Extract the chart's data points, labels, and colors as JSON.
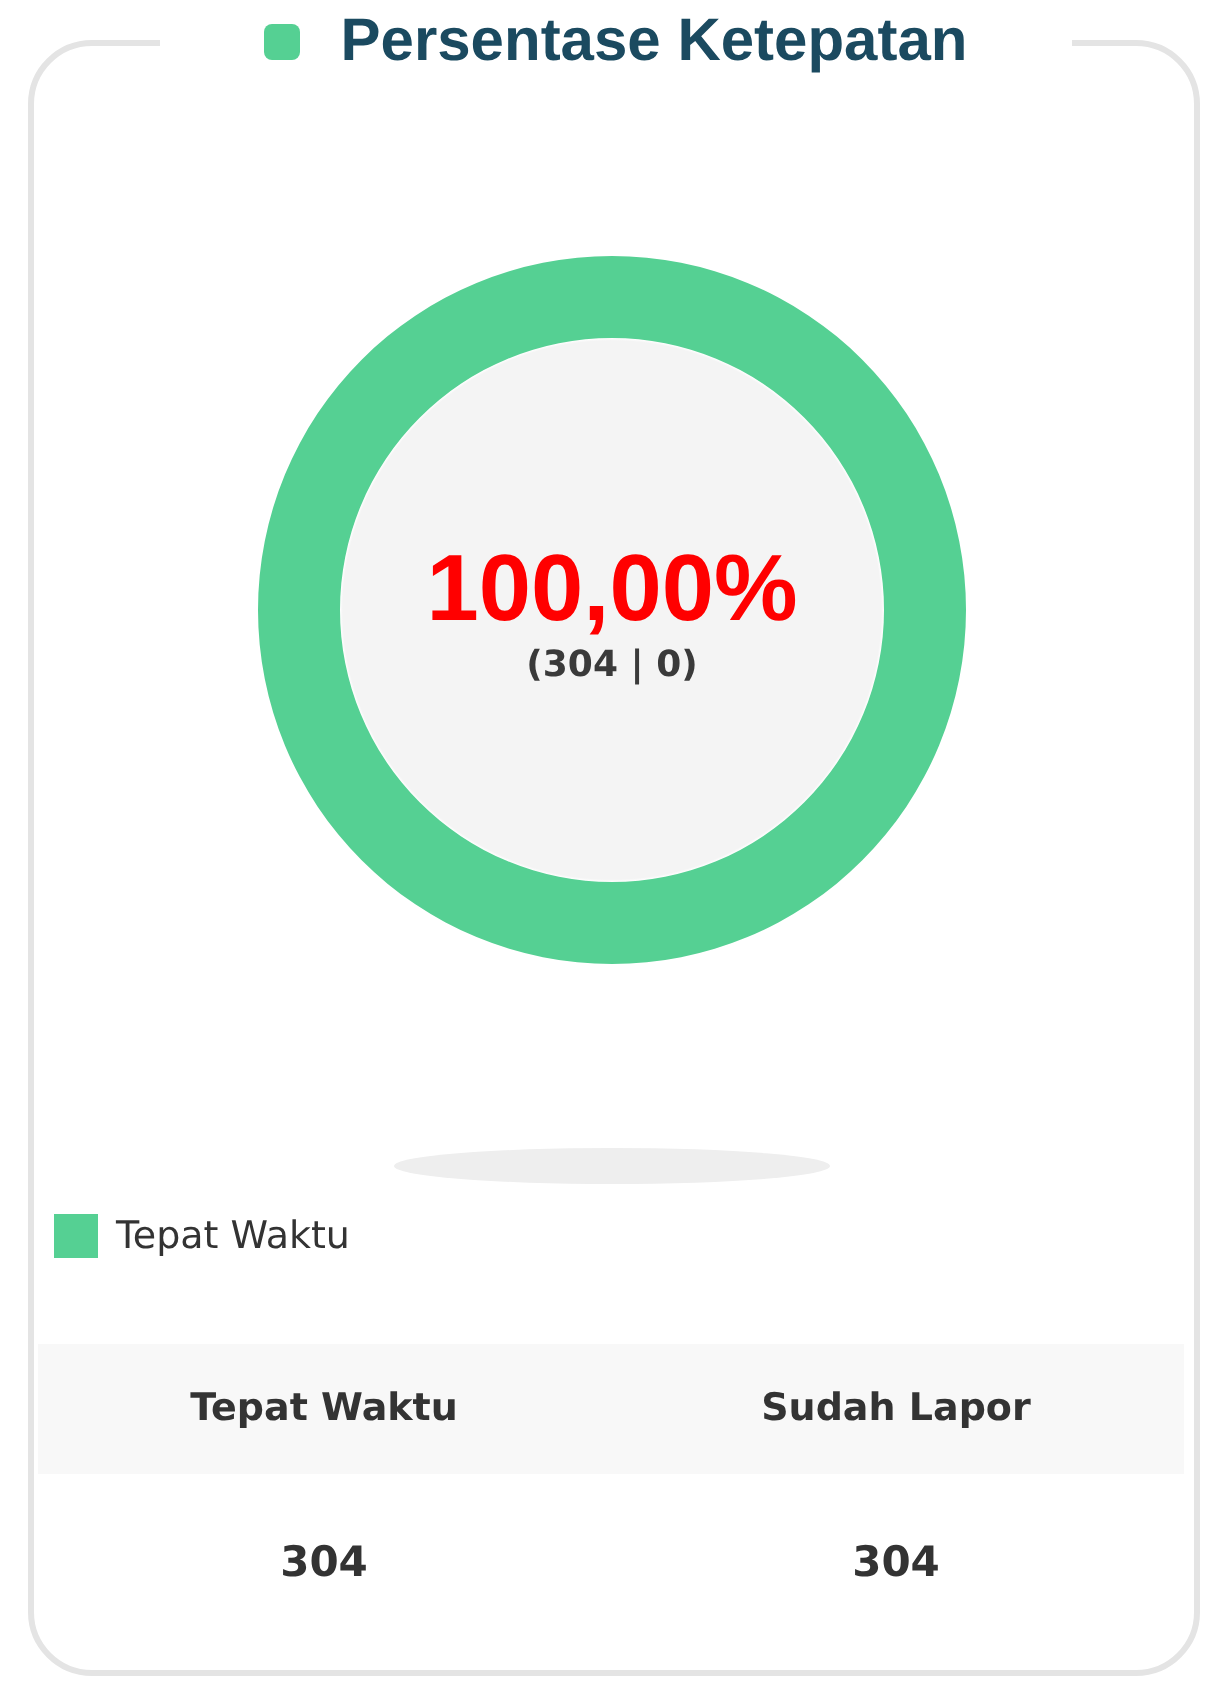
{
  "chart_data": {
    "type": "donut",
    "title": "Persentase Ketepatan",
    "categories": [
      "Tepat Waktu"
    ],
    "values": [
      100
    ],
    "colors": [
      "#55d093"
    ],
    "legend": "bottom left",
    "annotations": [
      "100,00%",
      "(304 | 0)",
      "Tepat Waktu",
      "Sudah Lapor",
      "304",
      "304"
    ]
  }
}
